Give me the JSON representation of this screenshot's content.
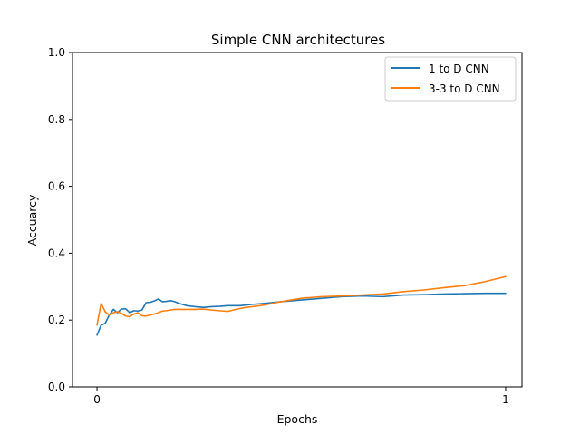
{
  "chart_data": {
    "type": "line",
    "title": "Simple CNN architectures",
    "xlabel": "Epochs",
    "ylabel": "Accuarcy",
    "xlim": [
      -0.06,
      1.04
    ],
    "ylim": [
      0.0,
      1.0
    ],
    "xticks": [
      {
        "value": 0,
        "label": "0"
      },
      {
        "value": 1,
        "label": "1"
      }
    ],
    "yticks": [
      {
        "value": 0.0,
        "label": "0.0"
      },
      {
        "value": 0.2,
        "label": "0.2"
      },
      {
        "value": 0.4,
        "label": "0.4"
      },
      {
        "value": 0.6,
        "label": "0.6"
      },
      {
        "value": 0.8,
        "label": "0.8"
      },
      {
        "value": 1.0,
        "label": "1.0"
      }
    ],
    "grid": false,
    "legend_position": "top-right",
    "series": [
      {
        "name": "1 to D CNN",
        "color": "#1f77b4",
        "x": [
          0,
          0.01,
          0.02,
          0.03,
          0.04,
          0.05,
          0.06,
          0.07,
          0.08,
          0.09,
          0.1,
          0.11,
          0.12,
          0.13,
          0.14,
          0.15,
          0.16,
          0.17,
          0.18,
          0.19,
          0.2,
          0.22,
          0.24,
          0.26,
          0.28,
          0.3,
          0.32,
          0.35,
          0.38,
          0.41,
          0.45,
          0.5,
          0.55,
          0.6,
          0.65,
          0.7,
          0.75,
          0.8,
          0.85,
          0.9,
          0.95,
          1.0
        ],
        "y": [
          0.155,
          0.185,
          0.19,
          0.215,
          0.232,
          0.222,
          0.233,
          0.234,
          0.222,
          0.228,
          0.227,
          0.23,
          0.252,
          0.253,
          0.257,
          0.263,
          0.255,
          0.256,
          0.258,
          0.255,
          0.25,
          0.243,
          0.24,
          0.238,
          0.24,
          0.241,
          0.243,
          0.243,
          0.247,
          0.25,
          0.255,
          0.26,
          0.265,
          0.27,
          0.272,
          0.27,
          0.275,
          0.276,
          0.278,
          0.279,
          0.28,
          0.28
        ]
      },
      {
        "name": "3-3 to D CNN",
        "color": "#ff7f0e",
        "x": [
          0,
          0.01,
          0.02,
          0.03,
          0.04,
          0.05,
          0.06,
          0.07,
          0.08,
          0.09,
          0.1,
          0.11,
          0.12,
          0.13,
          0.14,
          0.15,
          0.16,
          0.17,
          0.18,
          0.19,
          0.2,
          0.22,
          0.24,
          0.26,
          0.28,
          0.3,
          0.32,
          0.34,
          0.36,
          0.38,
          0.41,
          0.45,
          0.5,
          0.55,
          0.6,
          0.65,
          0.7,
          0.75,
          0.8,
          0.85,
          0.9,
          0.95,
          1.0
        ],
        "y": [
          0.185,
          0.25,
          0.225,
          0.215,
          0.222,
          0.225,
          0.22,
          0.212,
          0.21,
          0.218,
          0.222,
          0.213,
          0.212,
          0.215,
          0.218,
          0.222,
          0.227,
          0.228,
          0.23,
          0.232,
          0.232,
          0.232,
          0.232,
          0.233,
          0.23,
          0.228,
          0.226,
          0.232,
          0.237,
          0.24,
          0.245,
          0.255,
          0.265,
          0.27,
          0.272,
          0.275,
          0.278,
          0.285,
          0.29,
          0.297,
          0.303,
          0.315,
          0.33
        ]
      }
    ]
  }
}
